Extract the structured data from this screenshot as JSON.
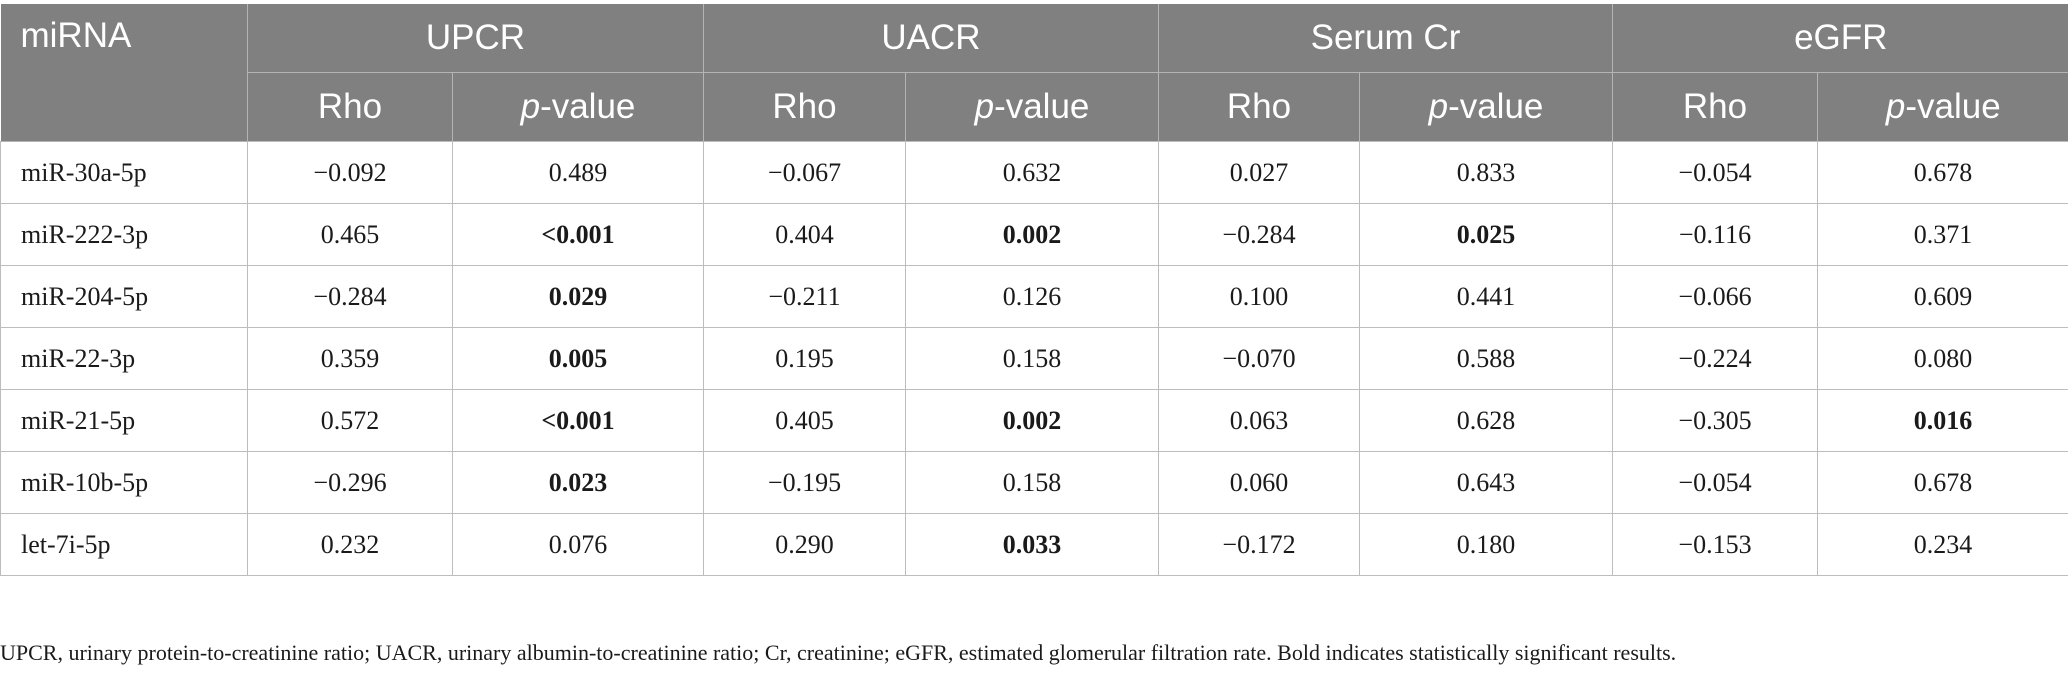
{
  "header": {
    "first_col": "miRNA",
    "groups": [
      "UPCR",
      "UACR",
      "Serum Cr",
      "eGFR"
    ],
    "sub_rho": "Rho",
    "sub_p_italic": "p",
    "sub_p_rest": "-value"
  },
  "rows": [
    {
      "name": "miR-30a-5p",
      "cells": [
        {
          "v": "−0.092",
          "b": false
        },
        {
          "v": "0.489",
          "b": false
        },
        {
          "v": "−0.067",
          "b": false
        },
        {
          "v": "0.632",
          "b": false
        },
        {
          "v": "0.027",
          "b": false
        },
        {
          "v": "0.833",
          "b": false
        },
        {
          "v": "−0.054",
          "b": false
        },
        {
          "v": "0.678",
          "b": false
        }
      ]
    },
    {
      "name": "miR-222-3p",
      "cells": [
        {
          "v": "0.465",
          "b": false
        },
        {
          "v": "<0.001",
          "b": true
        },
        {
          "v": "0.404",
          "b": false
        },
        {
          "v": "0.002",
          "b": true
        },
        {
          "v": "−0.284",
          "b": false
        },
        {
          "v": "0.025",
          "b": true
        },
        {
          "v": "−0.116",
          "b": false
        },
        {
          "v": "0.371",
          "b": false
        }
      ]
    },
    {
      "name": "miR-204-5p",
      "cells": [
        {
          "v": "−0.284",
          "b": false
        },
        {
          "v": "0.029",
          "b": true
        },
        {
          "v": "−0.211",
          "b": false
        },
        {
          "v": "0.126",
          "b": false
        },
        {
          "v": "0.100",
          "b": false
        },
        {
          "v": "0.441",
          "b": false
        },
        {
          "v": "−0.066",
          "b": false
        },
        {
          "v": "0.609",
          "b": false
        }
      ]
    },
    {
      "name": "miR-22-3p",
      "cells": [
        {
          "v": "0.359",
          "b": false
        },
        {
          "v": "0.005",
          "b": true
        },
        {
          "v": "0.195",
          "b": false
        },
        {
          "v": "0.158",
          "b": false
        },
        {
          "v": "−0.070",
          "b": false
        },
        {
          "v": "0.588",
          "b": false
        },
        {
          "v": "−0.224",
          "b": false
        },
        {
          "v": "0.080",
          "b": false
        }
      ]
    },
    {
      "name": "miR-21-5p",
      "cells": [
        {
          "v": "0.572",
          "b": false
        },
        {
          "v": "<0.001",
          "b": true
        },
        {
          "v": "0.405",
          "b": false
        },
        {
          "v": "0.002",
          "b": true
        },
        {
          "v": "0.063",
          "b": false
        },
        {
          "v": "0.628",
          "b": false
        },
        {
          "v": "−0.305",
          "b": false
        },
        {
          "v": "0.016",
          "b": true
        }
      ]
    },
    {
      "name": "miR-10b-5p",
      "cells": [
        {
          "v": "−0.296",
          "b": false
        },
        {
          "v": "0.023",
          "b": true
        },
        {
          "v": "−0.195",
          "b": false
        },
        {
          "v": "0.158",
          "b": false
        },
        {
          "v": "0.060",
          "b": false
        },
        {
          "v": "0.643",
          "b": false
        },
        {
          "v": "−0.054",
          "b": false
        },
        {
          "v": "0.678",
          "b": false
        }
      ]
    },
    {
      "name": "let-7i-5p",
      "cells": [
        {
          "v": "0.232",
          "b": false
        },
        {
          "v": "0.076",
          "b": false
        },
        {
          "v": "0.290",
          "b": false
        },
        {
          "v": "0.033",
          "b": true
        },
        {
          "v": "−0.172",
          "b": false
        },
        {
          "v": "0.180",
          "b": false
        },
        {
          "v": "−0.153",
          "b": false
        },
        {
          "v": "0.234",
          "b": false
        }
      ]
    }
  ],
  "footnote": "UPCR, urinary protein-to-creatinine ratio; UACR, urinary albumin-to-creatinine ratio; Cr, creatinine; eGFR, estimated glomerular filtration rate. Bold indicates statistically significant results."
}
